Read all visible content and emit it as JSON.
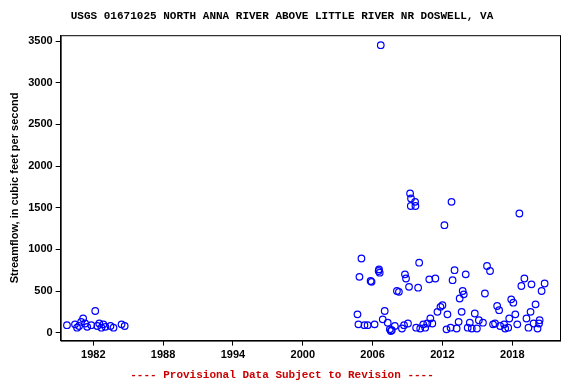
{
  "chart_data": {
    "type": "scatter",
    "title": "USGS 01671025 NORTH ANNA RIVER ABOVE LITTLE RIVER NR DOSWELL, VA",
    "y_label": "Streamflow, in cubic feet per second",
    "annotations": [
      "---- Provisional Data Subject to Revision ----"
    ],
    "color": "#0000ff",
    "marker": "circle",
    "grid": false,
    "xlim": [
      1979.2,
      2022.1
    ],
    "xticks": [
      1982,
      1988,
      1994,
      2000,
      2006,
      2012,
      2018
    ],
    "ylim": [
      -95,
      3570
    ],
    "yticks": [
      0,
      500,
      1000,
      1500,
      2000,
      2500,
      3000,
      3500
    ],
    "x": [
      1979.74,
      1980.43,
      1980.61,
      1980.78,
      1980.96,
      1981.13,
      1981.3,
      1981.48,
      1981.83,
      1982.17,
      1982.35,
      1982.52,
      1982.7,
      1982.87,
      1983.04,
      1983.48,
      1983.74,
      1984.43,
      1984.7,
      2004.7,
      2004.78,
      2004.87,
      2005.04,
      2005.3,
      2005.57,
      2005.83,
      2005.91,
      2006.17,
      2006.52,
      2006.61,
      2006.55,
      2006.7,
      2006.87,
      2007.04,
      2007.3,
      2007.48,
      2007.57,
      2007.65,
      2007.91,
      2008.09,
      2008.26,
      2008.52,
      2008.7,
      2008.78,
      2008.87,
      2009.04,
      2009.13,
      2009.22,
      2009.3,
      2009.28,
      2009.65,
      2009.68,
      2009.74,
      2009.91,
      2010.0,
      2010.09,
      2010.35,
      2010.52,
      2010.7,
      2010.87,
      2010.96,
      2011.13,
      2011.39,
      2011.57,
      2011.83,
      2012.0,
      2012.17,
      2012.35,
      2012.43,
      2012.7,
      2012.78,
      2012.87,
      2013.04,
      2013.22,
      2013.39,
      2013.48,
      2013.65,
      2013.74,
      2013.83,
      2014.0,
      2014.17,
      2014.35,
      2014.52,
      2014.78,
      2014.96,
      2015.13,
      2015.48,
      2015.65,
      2015.83,
      2016.09,
      2016.35,
      2016.52,
      2016.7,
      2016.87,
      2016.96,
      2017.3,
      2017.39,
      2017.65,
      2017.74,
      2017.91,
      2018.09,
      2018.26,
      2018.43,
      2018.61,
      2018.78,
      2019.04,
      2019.22,
      2019.39,
      2019.57,
      2019.65,
      2019.83,
      2020.0,
      2020.17,
      2020.35,
      2020.52,
      2020.78,
      2020.3
    ],
    "values": [
      90,
      100,
      60,
      80,
      130,
      170,
      110,
      70,
      90,
      260,
      80,
      110,
      60,
      100,
      70,
      80,
      60,
      100,
      80,
      220,
      100,
      670,
      890,
      90,
      90,
      620,
      610,
      100,
      740,
      720,
      760,
      3450,
      160,
      260,
      120,
      40,
      20,
      30,
      80,
      500,
      490,
      50,
      90,
      700,
      650,
      110,
      550,
      1670,
      1610,
      1520,
      1570,
      1520,
      60,
      540,
      840,
      50,
      100,
      60,
      110,
      640,
      170,
      110,
      650,
      250,
      310,
      330,
      1290,
      40,
      220,
      60,
      1570,
      630,
      750,
      50,
      130,
      410,
      250,
      500,
      460,
      700,
      60,
      120,
      50,
      230,
      50,
      150,
      120,
      470,
      800,
      740,
      100,
      110,
      320,
      270,
      80,
      100,
      50,
      60,
      170,
      400,
      360,
      220,
      100,
      1430,
      560,
      650,
      170,
      60,
      250,
      580,
      110,
      340,
      50,
      150,
      500,
      590,
      110
    ]
  }
}
